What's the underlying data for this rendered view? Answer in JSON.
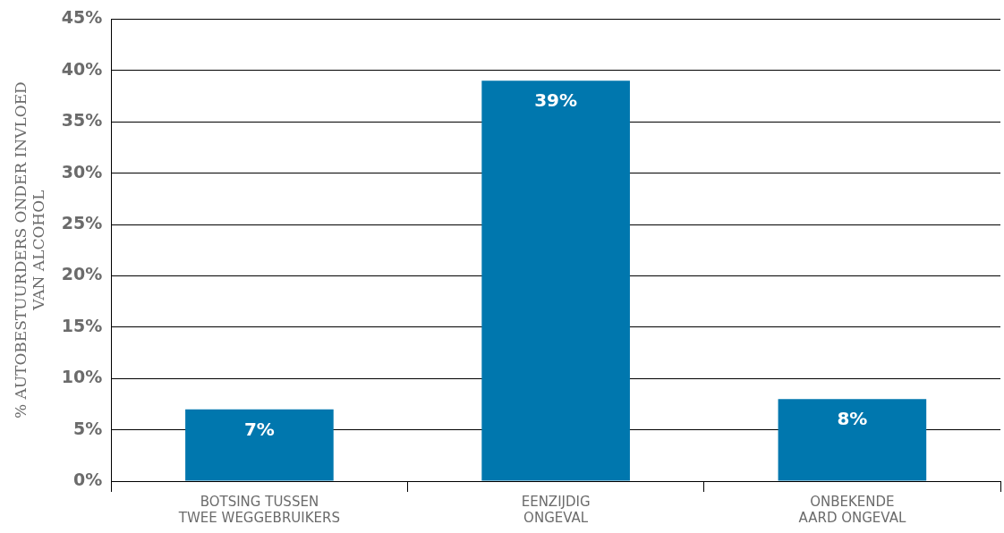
{
  "chart_data": {
    "type": "bar",
    "ylabel": "% AUTOBESTUURDERS ONDER INVLOED VAN ALCOHOL",
    "categories": [
      "BOTSING TUSSEN TWEE WEGGEBRUIKERS",
      "EENZIJDIG ONGEVAL",
      "ONBEKENDE AARD ONGEVAL"
    ],
    "values": [
      7,
      39,
      8
    ],
    "color": "#0077ae",
    "ylim": [
      0,
      45
    ],
    "yticks": [
      {
        "value": 0,
        "label": "0%"
      },
      {
        "value": 5,
        "label": "5%"
      },
      {
        "value": 10,
        "label": "10%"
      },
      {
        "value": 15,
        "label": "15%"
      },
      {
        "value": 20,
        "label": "20%"
      },
      {
        "value": 25,
        "label": "25%"
      },
      {
        "value": 30,
        "label": "30%"
      },
      {
        "value": 35,
        "label": "35%"
      },
      {
        "value": 40,
        "label": "40%"
      },
      {
        "value": 45,
        "label": "45%"
      }
    ],
    "value_labels": [
      "7%",
      "39%",
      "8%"
    ],
    "grid": "y",
    "legend": false
  }
}
